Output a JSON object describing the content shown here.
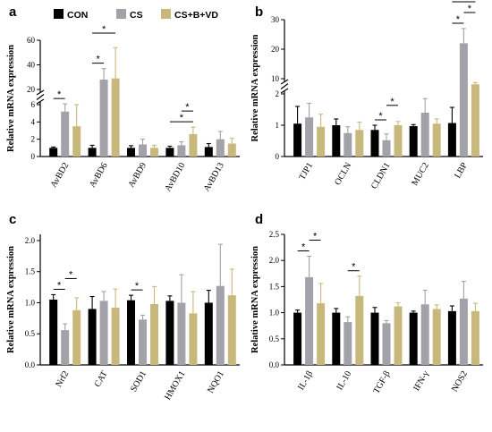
{
  "colors": {
    "CON": "#000000",
    "CS": "#a2a2a8",
    "CSBVD": "#c9b87c"
  },
  "legend": [
    "CON",
    "CS",
    "CS+B+VD"
  ],
  "chart_data": [
    {
      "panel": "a",
      "type": "bar",
      "ylabel": "Relative mRNA expression",
      "categories": [
        "AvBD2",
        "AvBD6",
        "AvBD9",
        "AvBD10",
        "AvBD13"
      ],
      "series": [
        {
          "name": "CON",
          "values": [
            1.0,
            1.0,
            1.0,
            1.0,
            1.1
          ],
          "errors": [
            0.1,
            0.3,
            0.25,
            0.2,
            0.4
          ]
        },
        {
          "name": "CS",
          "values": [
            5.2,
            28,
            1.4,
            1.3,
            2.0
          ],
          "errors": [
            1.5,
            9,
            0.6,
            0.4,
            0.9
          ]
        },
        {
          "name": "CS+B+VD",
          "values": [
            3.5,
            29,
            1.0,
            2.6,
            1.5
          ],
          "errors": [
            2.5,
            25,
            0.3,
            0.8,
            0.6
          ]
        }
      ],
      "yticks_lower": [
        "0",
        "2",
        "4",
        "6"
      ],
      "yticks_upper": [
        "20",
        "40",
        "60"
      ],
      "significance": [
        {
          "category": "AvBD2",
          "from": "CON",
          "to": "CS",
          "label": "*"
        },
        {
          "category": "AvBD6",
          "from": "CON",
          "to": "CS",
          "label": "*"
        },
        {
          "category": "AvBD6",
          "from": "CON",
          "to": "CS+B+VD",
          "label": "*"
        },
        {
          "category": "AvBD10",
          "from": "CON",
          "to": "CS+B+VD",
          "label": "*"
        },
        {
          "category": "AvBD10",
          "from": "CS",
          "to": "CS+B+VD",
          "label": "*"
        }
      ]
    },
    {
      "panel": "b",
      "type": "bar",
      "ylabel": "Relative mRNA expression",
      "categories": [
        "TJP1",
        "OCLN",
        "CLDN1",
        "MUC2",
        "LBP"
      ],
      "series": [
        {
          "name": "CON",
          "values": [
            1.05,
            1.0,
            0.85,
            0.97,
            1.07
          ],
          "errors": [
            0.55,
            0.2,
            0.15,
            0.05,
            0.5
          ]
        },
        {
          "name": "CS",
          "values": [
            1.25,
            0.75,
            0.52,
            1.4,
            22
          ],
          "errors": [
            0.45,
            0.2,
            0.2,
            0.45,
            5
          ]
        },
        {
          "name": "CS+B+VD",
          "values": [
            0.95,
            0.85,
            1.0,
            1.05,
            7
          ],
          "errors": [
            0.4,
            0.25,
            0.12,
            0.15,
            1
          ]
        }
      ],
      "yticks_lower": [
        "0",
        "1",
        "2"
      ],
      "yticks_upper": [
        "10",
        "20",
        "30"
      ],
      "significance": [
        {
          "category": "CLDN1",
          "from": "CON",
          "to": "CS",
          "label": "*"
        },
        {
          "category": "CLDN1",
          "from": "CS",
          "to": "CS+B+VD",
          "label": "*"
        },
        {
          "category": "LBP",
          "from": "CON",
          "to": "CS",
          "label": "*"
        },
        {
          "category": "LBP",
          "from": "CS",
          "to": "CS+B+VD",
          "label": "*"
        },
        {
          "category": "LBP",
          "from": "CON",
          "to": "CS+B+VD",
          "label": "*"
        }
      ]
    },
    {
      "panel": "c",
      "type": "bar",
      "ylabel": "Relative mRNA expression",
      "categories": [
        "Nrf2",
        "CAT",
        "SOD1",
        "HMOX1",
        "NQO1"
      ],
      "series": [
        {
          "name": "CON",
          "values": [
            1.05,
            0.9,
            1.04,
            1.03,
            1.0
          ],
          "errors": [
            0.08,
            0.2,
            0.08,
            0.08,
            0.2
          ]
        },
        {
          "name": "CS",
          "values": [
            0.56,
            1.03,
            0.73,
            1.0,
            1.27
          ],
          "errors": [
            0.1,
            0.15,
            0.07,
            0.45,
            0.67
          ]
        },
        {
          "name": "CS+B+VD",
          "values": [
            0.88,
            0.92,
            0.98,
            0.83,
            1.12
          ],
          "errors": [
            0.2,
            0.3,
            0.28,
            0.35,
            0.42
          ]
        }
      ],
      "yticks": [
        "0.0",
        "0.5",
        "1.0",
        "1.5",
        "2.0"
      ],
      "ylim": [
        0,
        2.1
      ],
      "significance": [
        {
          "category": "Nrf2",
          "from": "CON",
          "to": "CS",
          "label": "*"
        },
        {
          "category": "Nrf2",
          "from": "CS",
          "to": "CS+B+VD",
          "label": "*"
        },
        {
          "category": "SOD1",
          "from": "CON",
          "to": "CS",
          "label": "*"
        }
      ]
    },
    {
      "panel": "d",
      "type": "bar",
      "ylabel": "Relative mRNA expression",
      "categories": [
        "IL-1β",
        "IL-10",
        "TGF-β",
        "IFN-γ",
        "NOS2"
      ],
      "series": [
        {
          "name": "CON",
          "values": [
            1.0,
            1.0,
            1.0,
            1.0,
            1.03
          ],
          "errors": [
            0.05,
            0.08,
            0.1,
            0.03,
            0.1
          ]
        },
        {
          "name": "CS",
          "values": [
            1.68,
            0.82,
            0.8,
            1.16,
            1.27
          ],
          "errors": [
            0.4,
            0.1,
            0.05,
            0.27,
            0.33
          ]
        },
        {
          "name": "CS+B+VD",
          "values": [
            1.18,
            1.32,
            1.12,
            1.07,
            1.03
          ],
          "errors": [
            0.38,
            0.38,
            0.07,
            0.08,
            0.15
          ]
        }
      ],
      "yticks": [
        "0.0",
        "0.5",
        "1.0",
        "1.5",
        "2.0",
        "2.5"
      ],
      "ylim": [
        0,
        2.5
      ],
      "significance": [
        {
          "category": "IL-1β",
          "from": "CON",
          "to": "CS",
          "label": "*"
        },
        {
          "category": "IL-1β",
          "from": "CS",
          "to": "CS+B+VD",
          "label": "*"
        },
        {
          "category": "IL-10",
          "from": "CS",
          "to": "CS+B+VD",
          "label": "*"
        }
      ]
    }
  ]
}
